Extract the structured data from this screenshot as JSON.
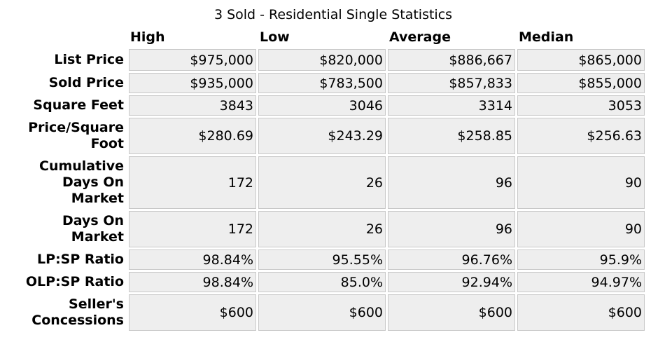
{
  "title": "3 Sold - Residential Single Statistics",
  "columns": [
    "High",
    "Low",
    "Average",
    "Median"
  ],
  "rows": [
    {
      "label": "List Price",
      "values": [
        "$975,000",
        "$820,000",
        "$886,667",
        "$865,000"
      ]
    },
    {
      "label": "Sold Price",
      "values": [
        "$935,000",
        "$783,500",
        "$857,833",
        "$855,000"
      ]
    },
    {
      "label": "Square Feet",
      "values": [
        "3843",
        "3046",
        "3314",
        "3053"
      ]
    },
    {
      "label": "Price/Square Foot",
      "values": [
        "$280.69",
        "$243.29",
        "$258.85",
        "$256.63"
      ]
    },
    {
      "label": "Cumulative Days On Market",
      "values": [
        "172",
        "26",
        "96",
        "90"
      ]
    },
    {
      "label": "Days On Market",
      "values": [
        "172",
        "26",
        "96",
        "90"
      ]
    },
    {
      "label": "LP:SP Ratio",
      "values": [
        "98.84%",
        "95.55%",
        "96.76%",
        "95.9%"
      ]
    },
    {
      "label": "OLP:SP Ratio",
      "values": [
        "98.84%",
        "85.0%",
        "92.94%",
        "94.97%"
      ]
    },
    {
      "label": "Seller's Concessions",
      "values": [
        "$600",
        "$600",
        "$600",
        "$600"
      ]
    }
  ]
}
